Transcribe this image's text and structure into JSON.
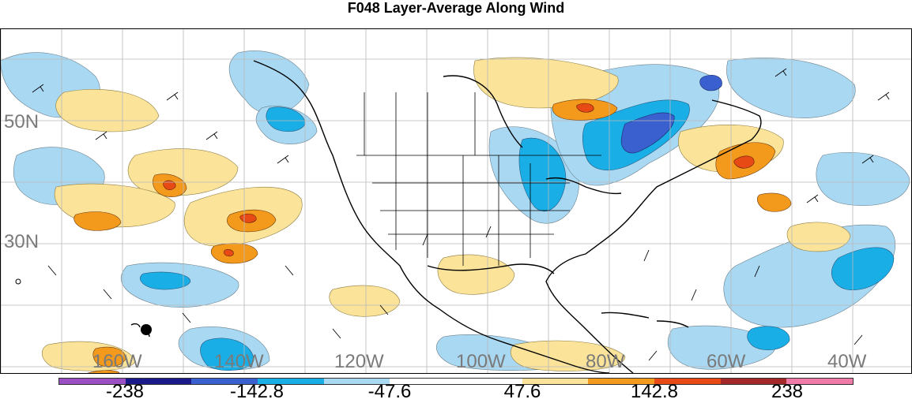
{
  "title": "F048 Layer-Average Along Wind",
  "map": {
    "projection": "latitude-longitude",
    "lat_labels": [
      "50N",
      "30N"
    ],
    "lon_labels": [
      "160W",
      "140W",
      "120W",
      "100W",
      "80W",
      "60W",
      "40W"
    ],
    "grid": true,
    "boundaries": [
      "coastlines",
      "US states",
      "Canadian provinces",
      "Mexican states",
      "Central American borders"
    ],
    "overlay": "wind barbs"
  },
  "colorbar": {
    "colors": [
      "#9a4fc4",
      "#1a1a8a",
      "#3a5fcf",
      "#1aaee6",
      "#a9d8f2",
      "#ffffff",
      "#ffffff",
      "#fbe49a",
      "#f39a1c",
      "#e84a16",
      "#a52828",
      "#f07aa8"
    ],
    "tick_labels": [
      "-238",
      "-142.8",
      "-47.6",
      "47.6",
      "142.8",
      "238"
    ]
  }
}
